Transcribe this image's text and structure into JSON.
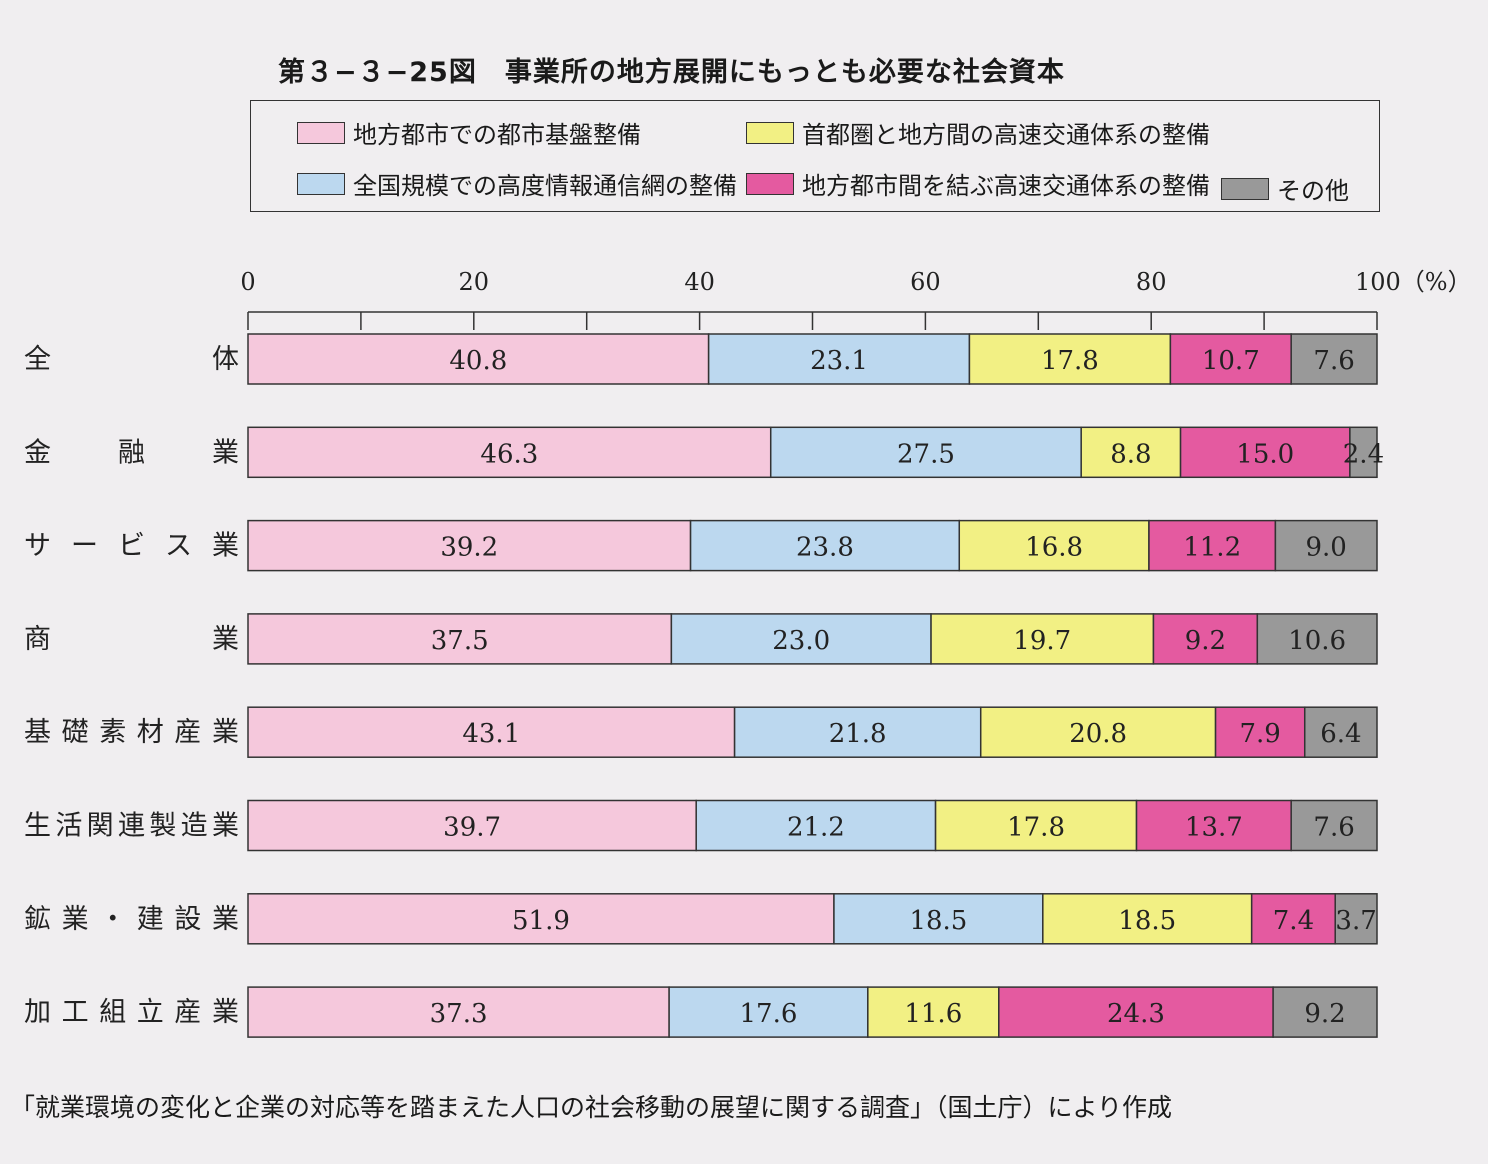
{
  "title": "第３−３−25図　事業所の地方展開にもっとも必要な社会資本",
  "source": "「就業環境の変化と企業の対応等を踏まえた人口の社会移動の展望に関する調査」（国土庁）により作成",
  "colors": {
    "series": [
      "#f5c8dc",
      "#bcd8ef",
      "#f2f084",
      "#e45aa0",
      "#999999"
    ],
    "border": "#333333",
    "background": "#f0eef0"
  },
  "chart_data": {
    "type": "bar",
    "orientation": "horizontal",
    "stacked": true,
    "title": "第３−３−25図　事業所の地方展開にもっとも必要な社会資本",
    "xlabel": "",
    "ylabel": "",
    "xlim": [
      0,
      100
    ],
    "x_ticks": [
      "0",
      "20",
      "40",
      "60",
      "80",
      "100（%）"
    ],
    "x_tick_values": [
      0,
      20,
      40,
      60,
      80,
      100
    ],
    "legend_position": "top",
    "categories": [
      "全　　　　　体",
      "金　　融　　業",
      "サ ー ビ ス 業",
      "商　　　　　業",
      "基礎素材産業",
      "生活関連製造業",
      "鉱業・建設業",
      "加工組立産業"
    ],
    "series": [
      {
        "name": "地方都市での都市基盤整備",
        "values": [
          40.8,
          46.3,
          39.2,
          37.5,
          43.1,
          39.7,
          51.9,
          37.3
        ],
        "labels": [
          "40.8",
          "46.3",
          "39.2",
          "37.5",
          "43.1",
          "39.7",
          "51.9",
          "37.3"
        ]
      },
      {
        "name": "全国規模での高度情報通信網の整備",
        "values": [
          23.1,
          27.5,
          23.8,
          23.0,
          21.8,
          21.2,
          18.5,
          17.6
        ],
        "labels": [
          "23.1",
          "27.5",
          "23.8",
          "23.0",
          "21.8",
          "21.2",
          "18.5",
          "17.6"
        ]
      },
      {
        "name": "首都圏と地方間の高速交通体系の整備",
        "values": [
          17.8,
          8.8,
          16.8,
          19.7,
          20.8,
          17.8,
          18.5,
          11.6
        ],
        "labels": [
          "17.8",
          "8.8",
          "16.8",
          "19.7",
          "20.8",
          "17.8",
          "18.5",
          "11.6"
        ]
      },
      {
        "name": "地方都市間を結ぶ高速交通体系の整備",
        "values": [
          10.7,
          15.0,
          11.2,
          9.2,
          7.9,
          13.7,
          7.4,
          24.3
        ],
        "labels": [
          "10.7",
          "15.0",
          "11.2",
          "9.2",
          "7.9",
          "13.7",
          "7.4",
          "24.3"
        ]
      },
      {
        "name": "その他",
        "values": [
          7.6,
          2.4,
          9.0,
          10.6,
          6.4,
          7.6,
          3.7,
          9.2
        ],
        "labels": [
          "7.6",
          "2.4",
          "9.0",
          "10.6",
          "6.4",
          "7.6",
          "3.7",
          "9.2"
        ]
      }
    ]
  }
}
